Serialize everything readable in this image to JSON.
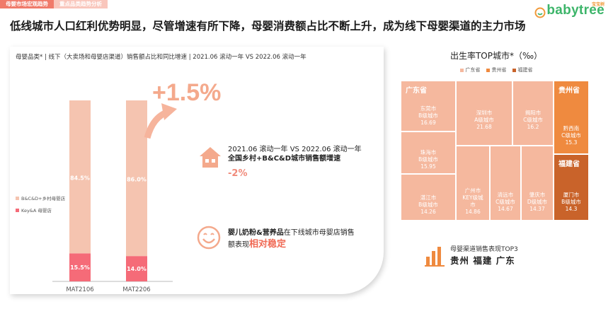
{
  "tabs": [
    {
      "label": "母婴市场宏观趋势"
    },
    {
      "label": "重点品类趋势分析"
    }
  ],
  "logo": {
    "text": "babytree",
    "sub": "宝宝树"
  },
  "headline": "低线城市人口红利优势明显，尽管增速有所下降，母婴消费额占比不断上升，成为线下母婴渠道的主力市场",
  "chart_data": [
    {
      "type": "bar",
      "title": "母婴品类* | 线下（大卖场和母婴店渠道）销售额占比和同比增速 | 2021.06 滚动一年 VS 2022.06 滚动一年",
      "categories": [
        "MAT2106",
        "MAT2206"
      ],
      "series": [
        {
          "name": "B&C&D+乡村母婴店",
          "values": [
            84.5,
            86.0
          ],
          "labels": [
            "84.5%",
            "86.0%"
          ],
          "color": "#f5c4b0"
        },
        {
          "name": "Key&A 母婴店",
          "values": [
            15.5,
            14.0
          ],
          "labels": [
            "15.5%",
            "14.0%"
          ],
          "color": "#f56b78"
        }
      ],
      "ylim": [
        0,
        100
      ],
      "stacked": true
    },
    {
      "type": "treemap",
      "title": "出生率TOP城市*（‰）",
      "legend": [
        {
          "name": "广东省",
          "color": "#f5b89e"
        },
        {
          "name": "贵州省",
          "color": "#ef8a3f"
        },
        {
          "name": "福建省",
          "color": "#c9632a"
        }
      ],
      "groups": [
        {
          "province": "广东省",
          "label": "广东省",
          "cities": [
            {
              "name": "东莞市",
              "tier": "B级城市",
              "value": 16.69
            },
            {
              "name": "深圳市",
              "tier": "A级城市",
              "value": 21.68
            },
            {
              "name": "揭阳市",
              "tier": "C级城市",
              "value": 16.2
            },
            {
              "name": "珠海市",
              "tier": "B级城市",
              "value": 15.95
            },
            {
              "name": "湛江市",
              "tier": "B级城市",
              "value": 14.26
            },
            {
              "name": "广州市",
              "tier": "KEY级城市",
              "value": 14.86
            },
            {
              "name": "清远市",
              "tier": "C级城市",
              "value": 14.67
            },
            {
              "name": "肇庆市",
              "tier": "D级城市",
              "value": 14.37
            }
          ]
        },
        {
          "province": "贵州省",
          "label": "贵州省",
          "cities": [
            {
              "name": "黔西南",
              "tier": "C级城市",
              "value": 15.3
            }
          ]
        },
        {
          "province": "福建省",
          "label": "福建省",
          "cities": [
            {
              "name": "厦门市",
              "tier": "B级城市",
              "value": 14.3
            }
          ]
        }
      ]
    }
  ],
  "growth_label": "+1.5%",
  "comparison": {
    "line1": "2021.06 滚动一年 VS 2022.06 滚动一年",
    "line2": "全国乡村+B&C&D城市销售额增速",
    "value": "-2%"
  },
  "note": {
    "part1": "婴儿奶粉&营养品",
    "part2": "在下线城市母婴店销售",
    "part3": "额表现",
    "part4": "相对稳定"
  },
  "top3": {
    "title": "母婴渠道销售表现TOP3",
    "provinces": "贵州 福建 广东"
  },
  "colors": {
    "accent": "#f07a6a",
    "logo_green": "#3db56a"
  }
}
